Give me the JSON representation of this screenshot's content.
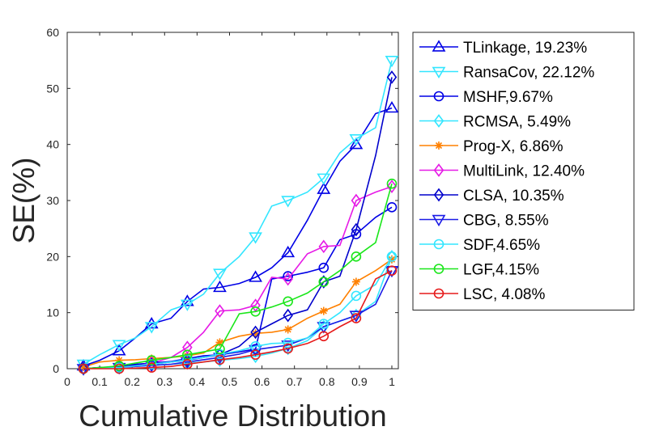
{
  "chart_data": {
    "type": "line",
    "xlabel": "Cumulative Distribution",
    "ylabel": "SE(%)",
    "xlim": [
      0,
      1.02
    ],
    "ylim": [
      0,
      60
    ],
    "x_ticks": [
      0,
      0.1,
      0.2,
      0.3,
      0.4,
      0.5,
      0.6,
      0.7,
      0.8,
      0.9,
      1
    ],
    "x_tick_labels": [
      "0",
      "0.1",
      "0.2",
      "0.3",
      "0.4",
      "0.5",
      "0.6",
      "0.7",
      "0.8",
      "0.9",
      "1"
    ],
    "y_ticks": [
      0,
      10,
      20,
      30,
      40,
      50,
      60
    ],
    "y_tick_labels": [
      "0",
      "10",
      "20",
      "30",
      "40",
      "50",
      "60"
    ],
    "legend_position": "outside-right",
    "series": [
      {
        "name": "TLinkage, 19.23%",
        "color": "#0000E6",
        "marker": "triangle-up",
        "x": [
          0.05,
          0.1,
          0.16,
          0.21,
          0.26,
          0.32,
          0.37,
          0.42,
          0.47,
          0.53,
          0.58,
          0.63,
          0.68,
          0.74,
          0.79,
          0.84,
          0.89,
          0.95,
          1.0
        ],
        "y": [
          0.5,
          1.5,
          3.2,
          5.5,
          8.0,
          9.0,
          12.0,
          14.2,
          14.5,
          15.2,
          16.3,
          18.0,
          20.7,
          26.5,
          32.0,
          37.0,
          40.0,
          45.5,
          46.5
        ]
      },
      {
        "name": "RansaCov, 22.12%",
        "color": "#33E6FF",
        "marker": "triangle-down",
        "x": [
          0.05,
          0.1,
          0.16,
          0.21,
          0.26,
          0.32,
          0.37,
          0.42,
          0.47,
          0.53,
          0.58,
          0.63,
          0.68,
          0.74,
          0.79,
          0.84,
          0.89,
          0.95,
          1.0
        ],
        "y": [
          0.8,
          2.5,
          4.3,
          5.5,
          7.5,
          10.5,
          11.5,
          13.3,
          17.0,
          20.0,
          23.5,
          29.0,
          30.0,
          31.5,
          34.0,
          38.5,
          41.0,
          43.0,
          55.0
        ]
      },
      {
        "name": "MSHF,9.67%",
        "color": "#0000E6",
        "marker": "circle",
        "x": [
          0.05,
          0.1,
          0.16,
          0.21,
          0.26,
          0.32,
          0.37,
          0.42,
          0.47,
          0.53,
          0.58,
          0.63,
          0.68,
          0.74,
          0.79,
          0.84,
          0.89,
          0.95,
          1.0
        ],
        "y": [
          0.0,
          0.2,
          0.3,
          0.8,
          1.0,
          1.3,
          1.8,
          2.3,
          2.5,
          3.0,
          3.5,
          16.0,
          16.5,
          17.2,
          18.0,
          23.0,
          24.0,
          27.0,
          28.8
        ]
      },
      {
        "name": "RCMSA, 5.49%",
        "color": "#33E6FF",
        "marker": "diamond",
        "x": [
          0.05,
          0.1,
          0.16,
          0.21,
          0.26,
          0.32,
          0.37,
          0.42,
          0.47,
          0.53,
          0.58,
          0.63,
          0.68,
          0.74,
          0.79,
          0.84,
          0.89,
          0.95,
          1.0
        ],
        "y": [
          0.0,
          0.1,
          0.2,
          0.4,
          0.6,
          0.8,
          1.0,
          1.2,
          1.5,
          1.8,
          2.2,
          2.8,
          3.6,
          5.0,
          7.5,
          8.5,
          9.5,
          12.0,
          20.0
        ]
      },
      {
        "name": "Prog-X, 6.86%",
        "color": "#FF8000",
        "marker": "asterisk",
        "x": [
          0.05,
          0.1,
          0.16,
          0.21,
          0.26,
          0.32,
          0.37,
          0.42,
          0.47,
          0.53,
          0.58,
          0.63,
          0.68,
          0.74,
          0.79,
          0.84,
          0.89,
          0.95,
          1.0
        ],
        "y": [
          0.3,
          1.2,
          1.5,
          1.6,
          1.8,
          2.0,
          2.3,
          2.8,
          4.7,
          5.8,
          6.3,
          6.5,
          7.0,
          9.0,
          10.3,
          11.5,
          15.5,
          17.5,
          19.5
        ]
      },
      {
        "name": "MultiLink, 12.40%",
        "color": "#E61AE6",
        "marker": "diamond",
        "x": [
          0.05,
          0.1,
          0.16,
          0.21,
          0.26,
          0.32,
          0.37,
          0.42,
          0.47,
          0.53,
          0.58,
          0.63,
          0.68,
          0.74,
          0.79,
          0.84,
          0.89,
          0.95,
          1.0
        ],
        "y": [
          0.0,
          0.1,
          0.2,
          0.5,
          1.0,
          2.0,
          3.8,
          6.5,
          10.3,
          10.5,
          11.3,
          16.3,
          16.0,
          20.5,
          21.8,
          22.0,
          30.0,
          31.5,
          32.5
        ]
      },
      {
        "name": "CLSA, 10.35%",
        "color": "#0000CC",
        "marker": "diamond",
        "x": [
          0.05,
          0.1,
          0.16,
          0.21,
          0.26,
          0.32,
          0.37,
          0.42,
          0.47,
          0.53,
          0.58,
          0.63,
          0.68,
          0.74,
          0.79,
          0.84,
          0.89,
          0.95,
          1.0
        ],
        "y": [
          0.0,
          0.2,
          0.3,
          0.6,
          0.8,
          1.2,
          1.5,
          2.0,
          2.5,
          4.0,
          6.5,
          8.0,
          9.5,
          10.5,
          15.5,
          16.5,
          24.8,
          38.0,
          52.0
        ]
      },
      {
        "name": "CBG, 8.55%",
        "color": "#1A1AE6",
        "marker": "triangle-down",
        "x": [
          0.05,
          0.1,
          0.16,
          0.21,
          0.26,
          0.32,
          0.37,
          0.42,
          0.47,
          0.53,
          0.58,
          0.63,
          0.68,
          0.74,
          0.79,
          0.84,
          0.89,
          0.95,
          1.0
        ],
        "y": [
          0.0,
          0.1,
          0.2,
          0.4,
          0.6,
          0.8,
          1.2,
          1.6,
          2.0,
          2.6,
          3.4,
          3.8,
          4.2,
          5.5,
          7.5,
          8.5,
          9.5,
          11.5,
          17.5
        ]
      },
      {
        "name": "SDF,4.65%",
        "color": "#33E6FF",
        "marker": "circle",
        "x": [
          0.05,
          0.1,
          0.16,
          0.21,
          0.26,
          0.32,
          0.37,
          0.42,
          0.47,
          0.53,
          0.58,
          0.63,
          0.68,
          0.74,
          0.79,
          0.84,
          0.89,
          0.95,
          1.0
        ],
        "y": [
          0.0,
          0.1,
          0.2,
          0.5,
          0.8,
          1.2,
          1.6,
          2.0,
          2.6,
          3.2,
          4.0,
          4.5,
          4.6,
          5.5,
          8.0,
          10.0,
          13.0,
          15.0,
          20.0
        ]
      },
      {
        "name": "LGF,4.15%",
        "color": "#1AE61A",
        "marker": "circle",
        "x": [
          0.05,
          0.1,
          0.16,
          0.21,
          0.26,
          0.32,
          0.37,
          0.42,
          0.47,
          0.53,
          0.58,
          0.63,
          0.68,
          0.74,
          0.79,
          0.84,
          0.89,
          0.95,
          1.0
        ],
        "y": [
          0.0,
          0.2,
          0.5,
          1.0,
          1.5,
          2.0,
          2.5,
          3.0,
          3.5,
          9.8,
          10.2,
          11.0,
          12.0,
          13.5,
          15.5,
          17.5,
          20.0,
          22.5,
          33.0
        ]
      },
      {
        "name": "LSC, 4.08%",
        "color": "#E61A1A",
        "marker": "circle",
        "x": [
          0.05,
          0.1,
          0.16,
          0.21,
          0.26,
          0.32,
          0.37,
          0.42,
          0.47,
          0.53,
          0.58,
          0.63,
          0.68,
          0.74,
          0.79,
          0.84,
          0.89,
          0.95,
          1.0
        ],
        "y": [
          0.0,
          0.0,
          0.0,
          0.1,
          0.2,
          0.4,
          0.8,
          1.2,
          1.6,
          2.0,
          2.5,
          3.0,
          3.6,
          4.5,
          5.8,
          7.5,
          9.0,
          16.0,
          17.5
        ]
      }
    ]
  }
}
